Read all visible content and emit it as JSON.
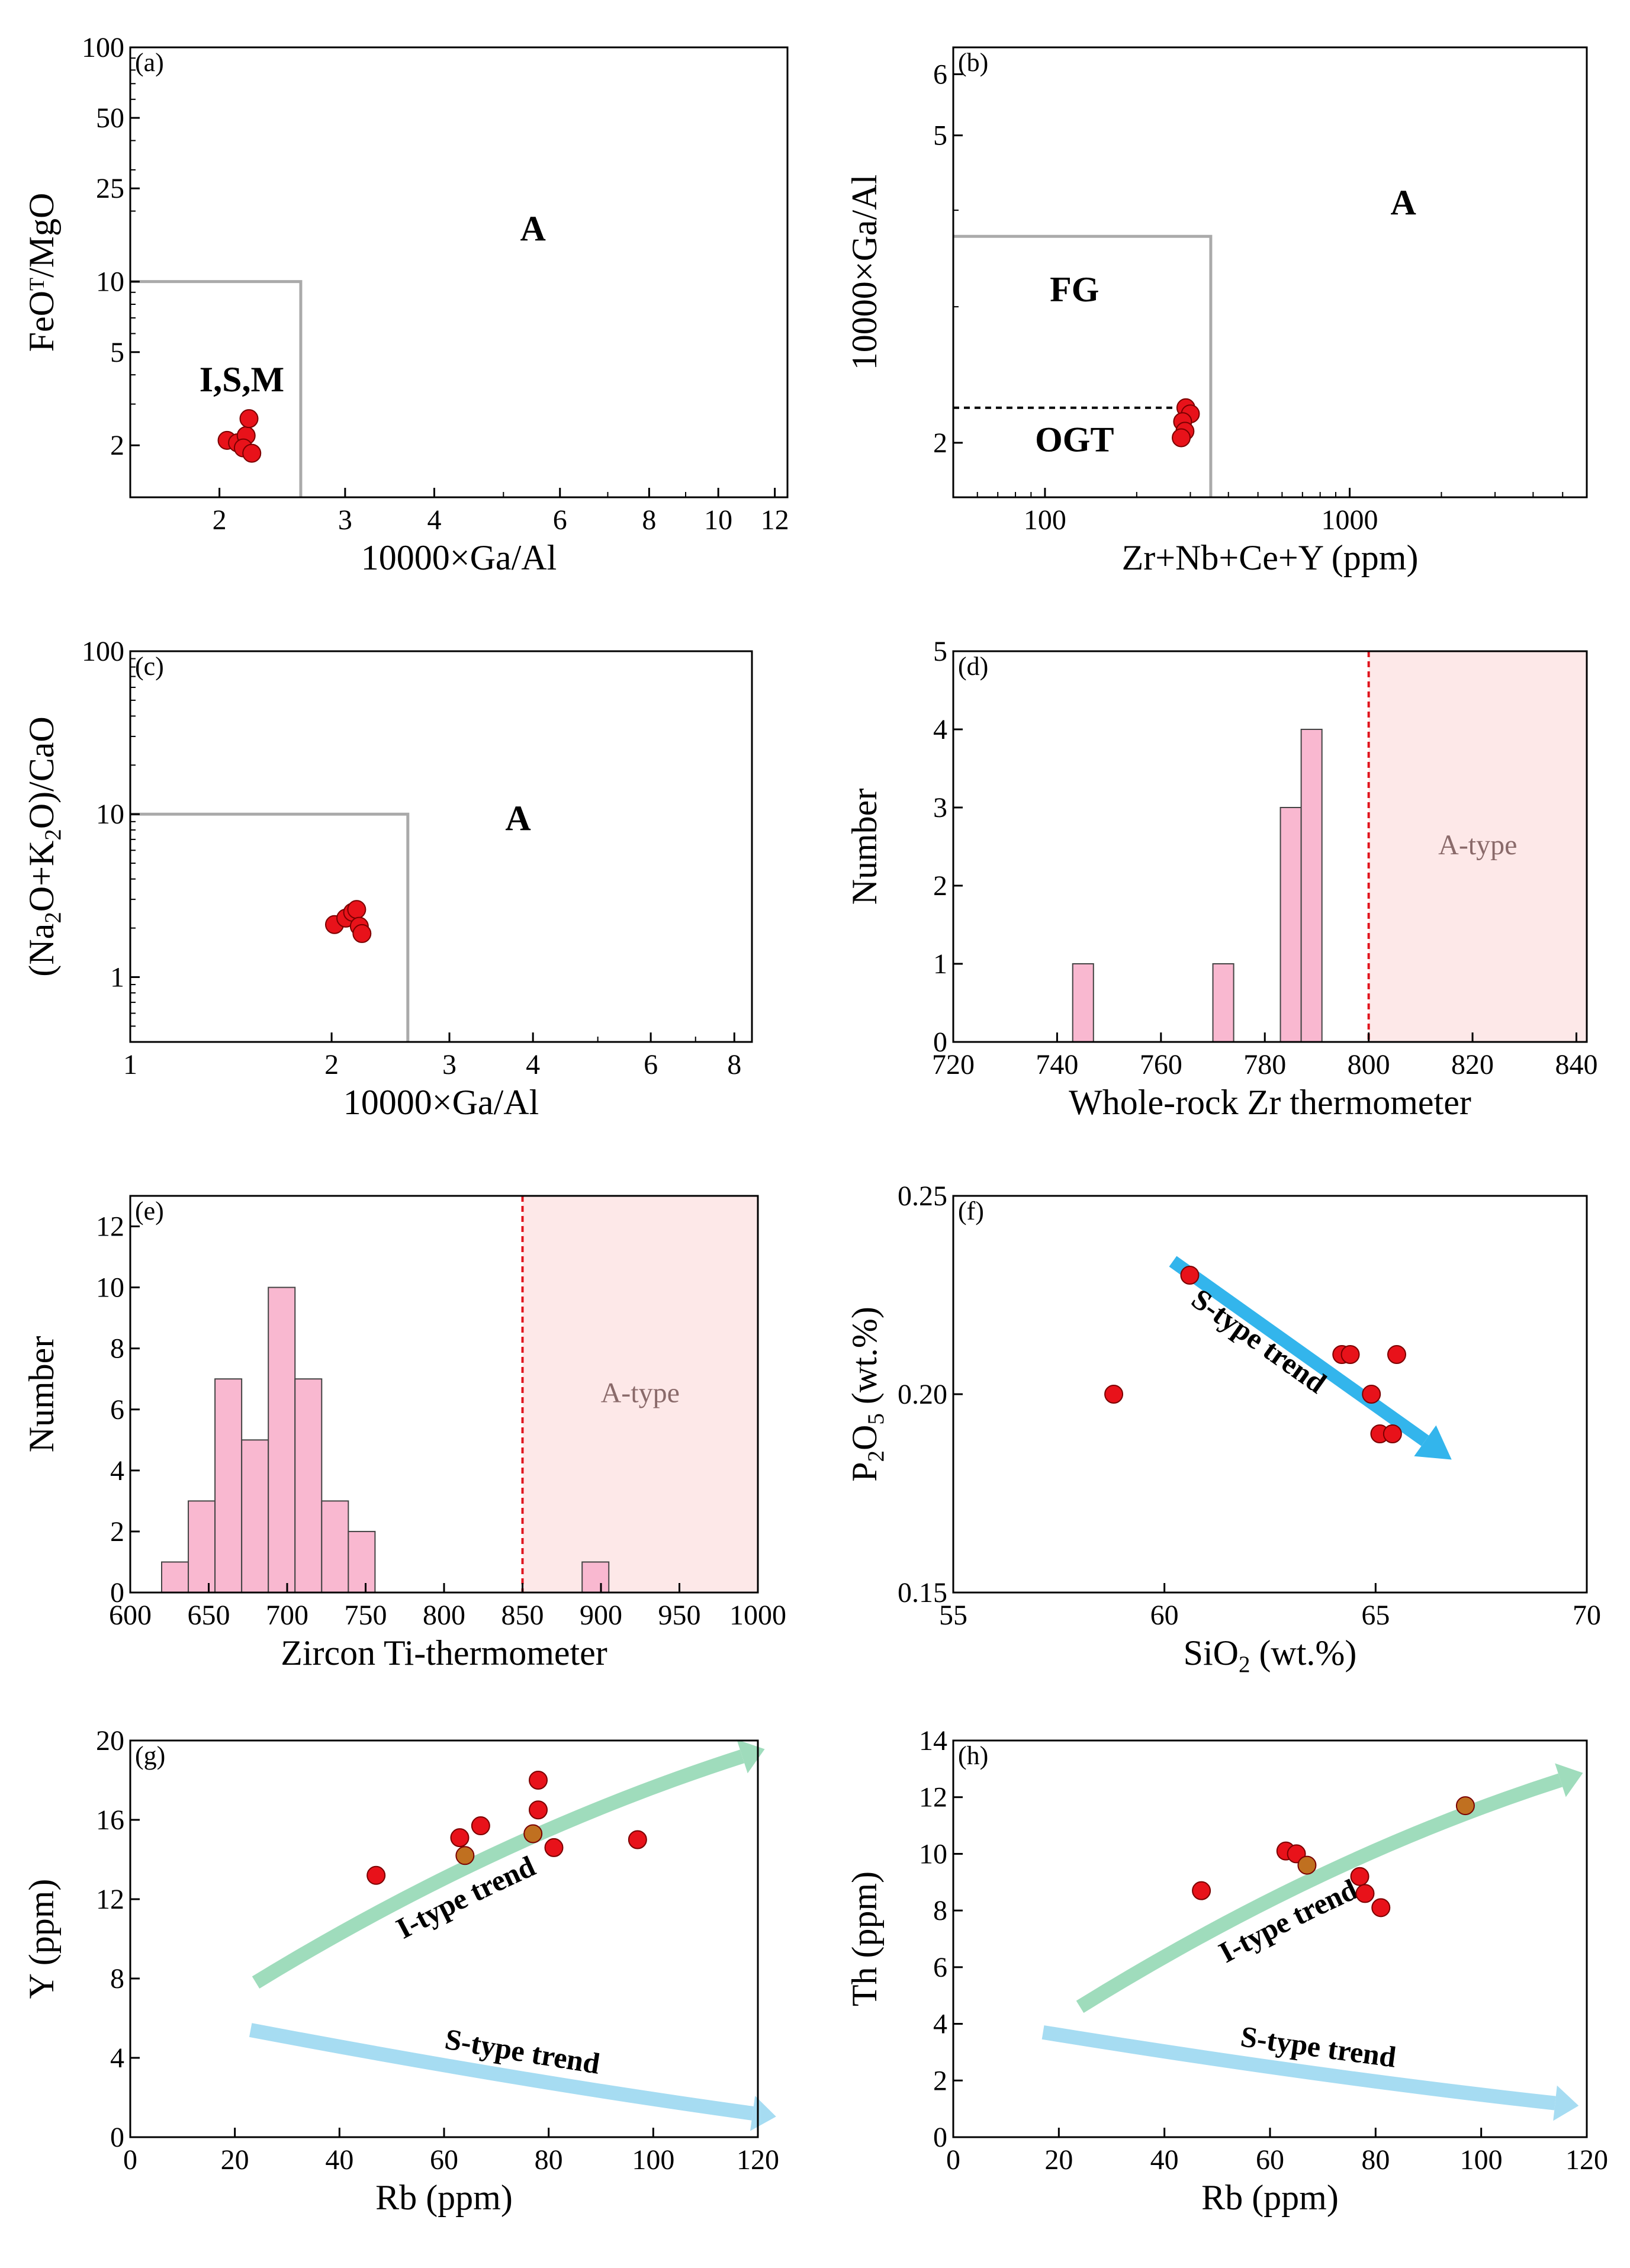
{
  "chart_data": [
    {
      "panel": "a",
      "label": "(a)",
      "type": "scatter",
      "xlabel": "10000×Ga/Al",
      "ylabel_parts": [
        "FeO",
        "T",
        "/MgO"
      ],
      "xscale": "log",
      "yscale": "log",
      "xlim": [
        1.5,
        12.5
      ],
      "ylim": [
        1.2,
        100
      ],
      "xticks": [
        2,
        3,
        4,
        6,
        8,
        10,
        12
      ],
      "yticks": [
        2,
        5,
        10,
        25,
        50,
        100
      ],
      "fields": [
        {
          "name": "I,S,M",
          "label_pos": [
            2.15,
            3.4
          ],
          "bold": true
        },
        {
          "name": "A",
          "label_pos": [
            5.5,
            15
          ],
          "bold": true
        }
      ],
      "boundary": {
        "style": "solid",
        "color": "#aaaaaa",
        "points": [
          [
            1.5,
            10
          ],
          [
            2.6,
            10
          ],
          [
            2.6,
            1.2
          ]
        ]
      },
      "points": [
        {
          "x": 2.05,
          "y": 2.1
        },
        {
          "x": 2.12,
          "y": 2.05
        },
        {
          "x": 2.18,
          "y": 2.2
        },
        {
          "x": 2.2,
          "y": 2.6
        },
        {
          "x": 2.16,
          "y": 1.95
        },
        {
          "x": 2.22,
          "y": 1.85
        }
      ]
    },
    {
      "panel": "b",
      "label": "(b)",
      "type": "scatter",
      "xlabel": "Zr+Nb+Ce+Y (ppm)",
      "ylabel": "10000×Ga/Al",
      "xscale": "log",
      "yscale": "log",
      "xlim": [
        50,
        6000
      ],
      "ylim": [
        1.7,
        6.5
      ],
      "xticks": [
        100,
        1000
      ],
      "yticks": [
        2,
        5,
        6
      ],
      "fields": [
        {
          "name": "A",
          "label_pos": [
            1500,
            3.95
          ],
          "bold": true
        },
        {
          "name": "FG",
          "label_pos": [
            125,
            3.05
          ],
          "bold": true
        },
        {
          "name": "OGT",
          "label_pos": [
            125,
            1.95
          ],
          "bold": true
        }
      ],
      "boundary": {
        "style": "solid",
        "color": "#aaaaaa",
        "points": [
          [
            50,
            3.7
          ],
          [
            350,
            3.7
          ],
          [
            350,
            1.7
          ]
        ]
      },
      "divider": {
        "style": "dashed",
        "color": "#000000",
        "points": [
          [
            50,
            2.22
          ],
          [
            290,
            2.22
          ]
        ]
      },
      "points": [
        {
          "x": 290,
          "y": 2.22
        },
        {
          "x": 300,
          "y": 2.18
        },
        {
          "x": 283,
          "y": 2.13
        },
        {
          "x": 288,
          "y": 2.07
        },
        {
          "x": 280,
          "y": 2.03
        }
      ]
    },
    {
      "panel": "c",
      "label": "(c)",
      "type": "scatter",
      "xlabel": "10000×Ga/Al",
      "ylabel_parts": [
        "(Na",
        "2",
        "O+K",
        "2",
        "O)/CaO"
      ],
      "xscale": "log",
      "yscale": "log",
      "xlim": [
        1,
        8.5
      ],
      "ylim": [
        0.4,
        100
      ],
      "xticks": [
        1,
        2,
        3,
        4,
        6,
        8
      ],
      "yticks": [
        1,
        10,
        100
      ],
      "fields": [
        {
          "name": "A",
          "label_pos": [
            3.8,
            8
          ],
          "bold": true
        }
      ],
      "boundary": {
        "style": "solid",
        "color": "#aaaaaa",
        "points": [
          [
            1,
            10
          ],
          [
            2.6,
            10
          ],
          [
            2.6,
            0.4
          ]
        ]
      },
      "points": [
        {
          "x": 2.02,
          "y": 2.1
        },
        {
          "x": 2.1,
          "y": 2.3
        },
        {
          "x": 2.15,
          "y": 2.5
        },
        {
          "x": 2.18,
          "y": 2.6
        },
        {
          "x": 2.2,
          "y": 2.05
        },
        {
          "x": 2.22,
          "y": 1.85
        }
      ]
    },
    {
      "panel": "d",
      "label": "(d)",
      "type": "bar",
      "title": "",
      "xlabel": "Whole-rock Zr thermometer",
      "ylabel": "Number",
      "xlim": [
        720,
        842
      ],
      "ylim": [
        0,
        5
      ],
      "xticks": [
        720,
        740,
        760,
        780,
        800,
        820,
        840
      ],
      "yticks": [
        0,
        1,
        2,
        3,
        4,
        5
      ],
      "bars": [
        {
          "x0": 743,
          "x1": 747,
          "value": 1
        },
        {
          "x0": 770,
          "x1": 774,
          "value": 1
        },
        {
          "x0": 783,
          "x1": 787,
          "value": 3
        },
        {
          "x0": 787,
          "x1": 791,
          "value": 4
        }
      ],
      "threshold": 800,
      "region": {
        "from": 800,
        "to": 842,
        "label": "A-type"
      }
    },
    {
      "panel": "e",
      "label": "(e)",
      "type": "bar",
      "title": "",
      "xlabel": "Zircon Ti-thermometer",
      "ylabel": "Number",
      "xlim": [
        600,
        1000
      ],
      "ylim": [
        0,
        13
      ],
      "xticks": [
        600,
        650,
        700,
        750,
        800,
        850,
        900,
        950,
        1000
      ],
      "yticks": [
        0,
        2,
        4,
        6,
        8,
        10,
        12
      ],
      "bars": [
        {
          "x0": 620,
          "x1": 637,
          "value": 1
        },
        {
          "x0": 637,
          "x1": 654,
          "value": 3
        },
        {
          "x0": 654,
          "x1": 671,
          "value": 7
        },
        {
          "x0": 671,
          "x1": 688,
          "value": 5
        },
        {
          "x0": 688,
          "x1": 705,
          "value": 10
        },
        {
          "x0": 705,
          "x1": 722,
          "value": 7
        },
        {
          "x0": 722,
          "x1": 739,
          "value": 3
        },
        {
          "x0": 739,
          "x1": 756,
          "value": 2
        },
        {
          "x0": 888,
          "x1": 905,
          "value": 1
        }
      ],
      "threshold": 850,
      "region": {
        "from": 850,
        "to": 1000,
        "label": "A-type"
      }
    },
    {
      "panel": "f",
      "label": "(f)",
      "type": "scatter",
      "xlabel_parts": [
        "SiO",
        "2",
        " (wt.%)"
      ],
      "ylabel_parts": [
        "P",
        "2",
        "O",
        "5",
        " (wt.%)"
      ],
      "xlim": [
        55,
        70
      ],
      "ylim": [
        0.15,
        0.25
      ],
      "xticks": [
        55,
        60,
        65,
        70
      ],
      "yticks": [
        0.15,
        0.2,
        0.25
      ],
      "ytick_labels": [
        "0.15",
        "0.20",
        "0.25"
      ],
      "trend": {
        "label": "S-type trend",
        "color": "#33b5ec",
        "from": [
          60.2,
          0.2335
        ],
        "to": [
          66.8,
          0.1835
        ]
      },
      "points": [
        {
          "x": 58.8,
          "y": 0.2
        },
        {
          "x": 60.6,
          "y": 0.23
        },
        {
          "x": 64.2,
          "y": 0.21
        },
        {
          "x": 64.4,
          "y": 0.21
        },
        {
          "x": 65.5,
          "y": 0.21
        },
        {
          "x": 64.9,
          "y": 0.2
        },
        {
          "x": 65.1,
          "y": 0.19
        },
        {
          "x": 65.4,
          "y": 0.19
        }
      ]
    },
    {
      "panel": "g",
      "label": "(g)",
      "type": "scatter",
      "xlabel": "Rb (ppm)",
      "ylabel": "Y (ppm)",
      "xlim": [
        0,
        120
      ],
      "ylim": [
        0,
        20
      ],
      "xticks": [
        0,
        20,
        40,
        60,
        80,
        100,
        120
      ],
      "yticks": [
        0,
        4,
        8,
        12,
        16,
        20
      ],
      "trends": [
        {
          "label": "I-type trend",
          "color": "#9fdcbc",
          "points": [
            [
              24,
              7.8
            ],
            [
              70,
              15.2
            ],
            [
              117,
              19.2
            ]
          ]
        },
        {
          "label": "S-type trend",
          "color": "#a6dcf2",
          "points": [
            [
              23,
              5.4
            ],
            [
              75,
              2.8
            ],
            [
              119,
              1.2
            ]
          ]
        }
      ],
      "points": [
        {
          "x": 47,
          "y": 13.2
        },
        {
          "x": 63,
          "y": 15.1
        },
        {
          "x": 64,
          "y": 14.2,
          "fill": "#c07020"
        },
        {
          "x": 67,
          "y": 15.7
        },
        {
          "x": 77,
          "y": 15.3,
          "fill": "#c07020"
        },
        {
          "x": 78,
          "y": 16.5
        },
        {
          "x": 78,
          "y": 18
        },
        {
          "x": 81,
          "y": 14.6
        },
        {
          "x": 97,
          "y": 15
        }
      ]
    },
    {
      "panel": "h",
      "label": "(h)",
      "type": "scatter",
      "xlabel": "Rb (ppm)",
      "ylabel": "Th (ppm)",
      "xlim": [
        0,
        120
      ],
      "ylim": [
        0,
        14
      ],
      "xticks": [
        0,
        20,
        40,
        60,
        80,
        100,
        120
      ],
      "yticks": [
        0,
        2,
        4,
        6,
        8,
        10,
        12,
        14
      ],
      "trends": [
        {
          "label": "I-type trend",
          "color": "#9fdcbc",
          "points": [
            [
              24,
              4.6
            ],
            [
              70,
              9.9
            ],
            [
              115,
              12.6
            ]
          ]
        },
        {
          "label": "S-type trend",
          "color": "#a6dcf2",
          "points": [
            [
              17,
              3.7
            ],
            [
              70,
              2.1
            ],
            [
              114,
              1.2
            ]
          ]
        }
      ],
      "points": [
        {
          "x": 47,
          "y": 8.7
        },
        {
          "x": 63,
          "y": 10.1
        },
        {
          "x": 65,
          "y": 10
        },
        {
          "x": 67,
          "y": 9.6,
          "fill": "#c07020"
        },
        {
          "x": 77,
          "y": 9.2
        },
        {
          "x": 78,
          "y": 8.6
        },
        {
          "x": 81,
          "y": 8.1
        },
        {
          "x": 97,
          "y": 11.7,
          "fill": "#c07020"
        }
      ]
    }
  ]
}
